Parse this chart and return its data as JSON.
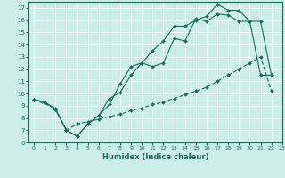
{
  "xlabel": "Humidex (Indice chaleur)",
  "xlim": [
    -0.5,
    23
  ],
  "ylim": [
    6,
    17.5
  ],
  "yticks": [
    6,
    7,
    8,
    9,
    10,
    11,
    12,
    13,
    14,
    15,
    16,
    17
  ],
  "xticks": [
    0,
    1,
    2,
    3,
    4,
    5,
    6,
    7,
    8,
    9,
    10,
    11,
    12,
    13,
    14,
    15,
    16,
    17,
    18,
    19,
    20,
    21,
    22,
    23
  ],
  "bg_color": "#cceee8",
  "line_color": "#1a6b5a",
  "grid_color": "#ffffff",
  "line1_x": [
    0,
    1,
    2,
    3,
    4,
    5,
    6,
    7,
    8,
    9,
    10,
    11,
    12,
    13,
    14,
    15,
    16,
    17,
    18,
    19,
    20,
    21,
    22
  ],
  "line1_y": [
    9.5,
    9.3,
    8.7,
    7.0,
    6.5,
    7.5,
    8.2,
    9.6,
    10.1,
    11.5,
    12.5,
    12.2,
    12.5,
    14.5,
    14.3,
    16.1,
    15.9,
    16.5,
    16.4,
    15.9,
    15.9,
    15.9,
    11.5
  ],
  "line2_x": [
    0,
    1,
    2,
    3,
    4,
    5,
    6,
    7,
    8,
    9,
    10,
    11,
    12,
    13,
    14,
    15,
    16,
    17,
    18,
    19,
    20,
    21,
    22
  ],
  "line2_y": [
    9.5,
    9.3,
    8.7,
    7.0,
    6.5,
    7.5,
    8.2,
    9.1,
    10.8,
    12.2,
    12.5,
    13.5,
    14.3,
    15.5,
    15.5,
    16.0,
    16.3,
    17.3,
    16.8,
    16.8,
    15.9,
    11.5,
    11.5
  ],
  "line3_x": [
    0,
    2,
    3,
    4,
    5,
    6,
    7,
    8,
    9,
    10,
    11,
    12,
    13,
    14,
    15,
    16,
    17,
    18,
    19,
    20,
    21,
    22
  ],
  "line3_y": [
    9.5,
    8.8,
    7.0,
    7.5,
    7.7,
    7.9,
    8.1,
    8.3,
    8.6,
    8.8,
    9.1,
    9.3,
    9.6,
    9.9,
    10.2,
    10.5,
    11.0,
    11.5,
    12.0,
    12.5,
    13.0,
    10.2
  ]
}
